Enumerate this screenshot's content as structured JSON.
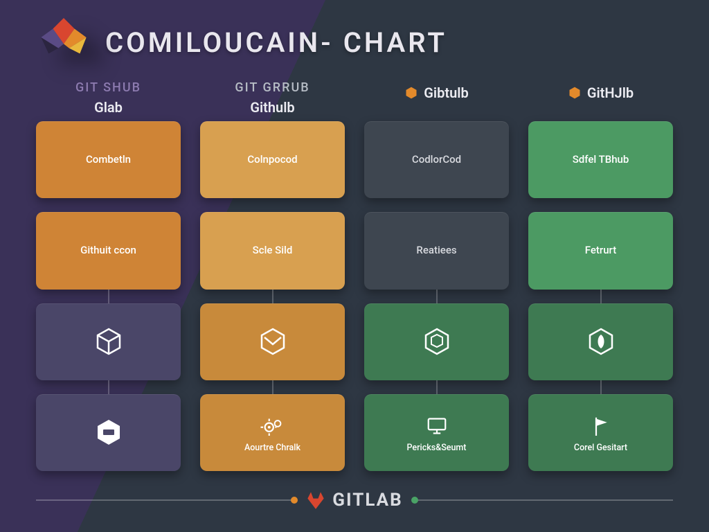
{
  "title": "COMILOUCAIN- CHART",
  "background": {
    "left_color": "#3a3158",
    "right_color": "#2e3743",
    "split_angle_deg": 115,
    "split_at_percent": 34
  },
  "logo_colors": {
    "red": "#d9462f",
    "orange": "#e38a2b",
    "yellow": "#e9b83d",
    "purple": "#5a4b85",
    "dark": "#2b2540"
  },
  "columns": [
    {
      "top_label": "GIT SHUB",
      "top_color": "#8d7bb0",
      "bottom_label": "Glab",
      "icon": null,
      "icon_color": null
    },
    {
      "top_label": "GIT GRRUB",
      "top_color": "#b6bcc5",
      "bottom_label": "Githulb",
      "icon": null,
      "icon_color": null
    },
    {
      "top_label": "",
      "top_color": "#b6bcc5",
      "bottom_label": "Gibtulb",
      "icon": "hex-solid",
      "icon_color": "#e38a2b"
    },
    {
      "top_label": "",
      "top_color": "#b6bcc5",
      "bottom_label": "GitHJlb",
      "icon": "hex-solid",
      "icon_color": "#e38a2b"
    }
  ],
  "tile_colors": {
    "orange": {
      "bg": "#cf8436",
      "fg": "#ffffff"
    },
    "orange_light": {
      "bg": "#d8a050",
      "fg": "#ffffff"
    },
    "dark_grey": {
      "bg": "#3e4650",
      "fg": "#d8dadf"
    },
    "green": {
      "bg": "#4c9a63",
      "fg": "#ffffff"
    },
    "green_dark": {
      "bg": "#3e7a52",
      "fg": "#ffffff"
    },
    "purple": {
      "bg": "#4a4668",
      "fg": "#d3cee4"
    },
    "orange_mid": {
      "bg": "#c88a3b",
      "fg": "#ffffff"
    }
  },
  "grid": [
    [
      {
        "kind": "text",
        "label": "Combetln",
        "color": "orange"
      },
      {
        "kind": "text",
        "label": "Colnpocod",
        "color": "orange_light"
      },
      {
        "kind": "text",
        "label": "CodlorCod",
        "color": "dark_grey"
      },
      {
        "kind": "text",
        "label": "Sdfel TBhub",
        "color": "green"
      }
    ],
    [
      {
        "kind": "text",
        "label": "Githuit ccon",
        "color": "orange"
      },
      {
        "kind": "text",
        "label": "Scle Sild",
        "color": "orange_light"
      },
      {
        "kind": "text",
        "label": "Reatiees",
        "color": "dark_grey"
      },
      {
        "kind": "text",
        "label": "Fetrurt",
        "color": "green"
      }
    ],
    [
      {
        "kind": "icon",
        "icon": "hex-box",
        "color": "purple",
        "connector": true
      },
      {
        "kind": "icon",
        "icon": "hex-envelope",
        "color": "orange_mid",
        "connector": true
      },
      {
        "kind": "icon",
        "icon": "hex-cube",
        "color": "green_dark",
        "connector": true
      },
      {
        "kind": "icon",
        "icon": "hex-leaf",
        "color": "green_dark",
        "connector": true
      }
    ],
    [
      {
        "kind": "icon",
        "icon": "hex-badge",
        "color": "purple",
        "connector": true
      },
      {
        "kind": "icon-text",
        "icon": "gears",
        "label": "Aourtre Chralk",
        "color": "orange_mid",
        "connector": true
      },
      {
        "kind": "icon-text",
        "icon": "monitor",
        "label": "Pericks&Seumt",
        "color": "green_dark",
        "connector": true
      },
      {
        "kind": "icon-text",
        "icon": "flag",
        "label": "Corel Gesitart",
        "color": "green_dark",
        "connector": true
      }
    ]
  ],
  "footer": {
    "brand": "GITLAB",
    "left_dot_color": "#e38a2b",
    "right_dot_color": "#4aa366",
    "rule_color": "rgba(255,255,255,.25)",
    "logo_color": "#d9462f"
  }
}
